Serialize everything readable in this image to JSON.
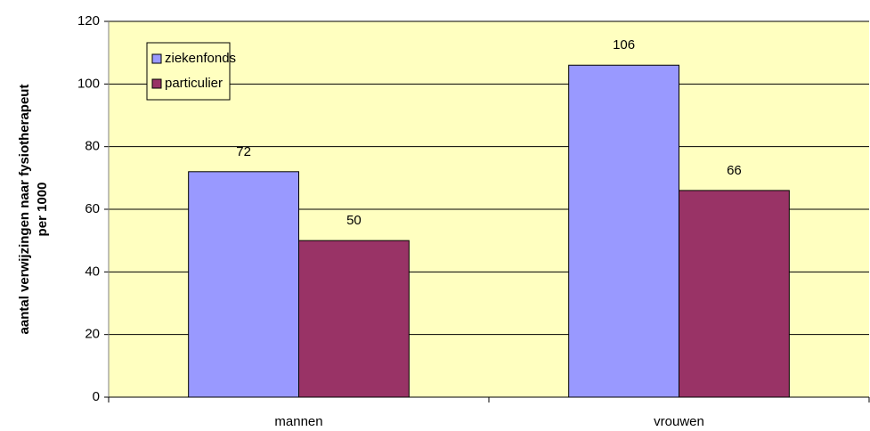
{
  "chart_data": {
    "type": "bar",
    "ylabel": [
      "aantal verwijzingen naar fysiotherapeut",
      "per 1000"
    ],
    "categories": [
      "mannen",
      "vrouwen"
    ],
    "series": [
      {
        "name": "ziekenfonds",
        "color": "#9999ff",
        "values": [
          72,
          106
        ]
      },
      {
        "name": "particulier",
        "color": "#993366",
        "values": [
          50,
          66
        ]
      }
    ],
    "ylim": [
      0,
      120
    ],
    "yticks": [
      0,
      20,
      40,
      60,
      80,
      100,
      120
    ],
    "grid": true,
    "legend": "upper left",
    "plot_background": "#ffffc0"
  }
}
